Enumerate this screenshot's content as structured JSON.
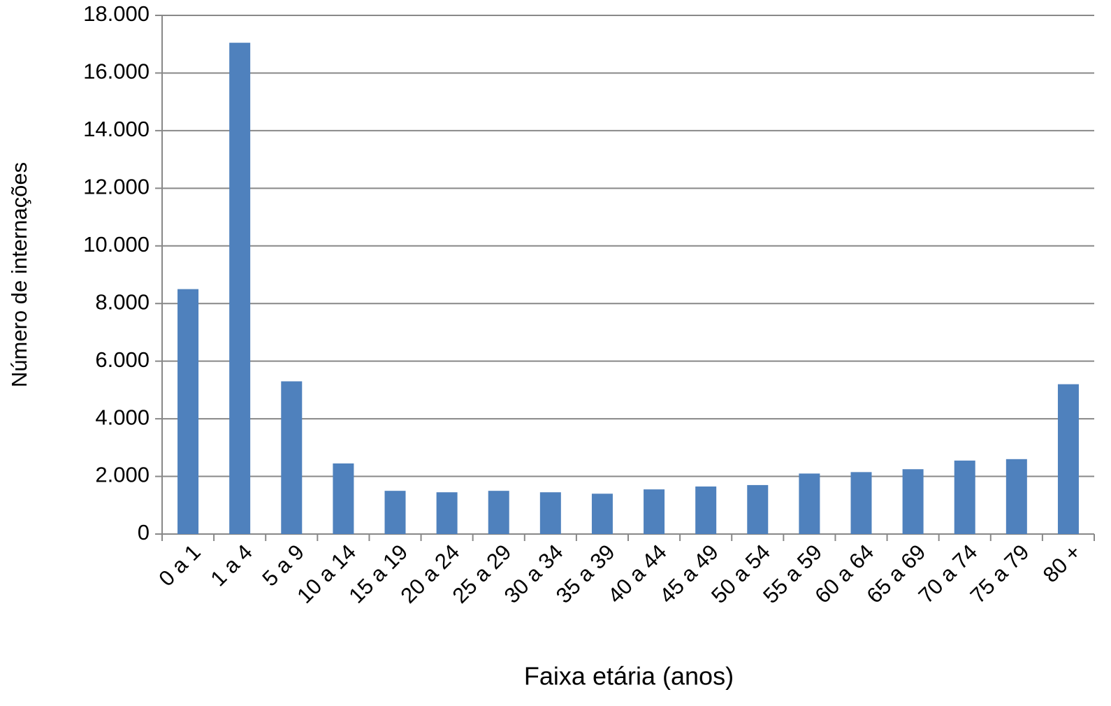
{
  "chart_data": {
    "type": "bar",
    "x_label": "Faixa etária (anos)",
    "y_label": "Número de internações",
    "categories": [
      "0 a 1",
      "1 a 4",
      "5 a 9",
      "10 a 14",
      "15 a 19",
      "20 a 24",
      "25 a 29",
      "30 a 34",
      "35 a 39",
      "40 a 44",
      "45 a 49",
      "50 a 54",
      "55 a 59",
      "60 a 64",
      "65 a 69",
      "70 a 74",
      "75 a 79",
      "80 +"
    ],
    "values": [
      8500,
      17050,
      5300,
      2450,
      1500,
      1450,
      1500,
      1450,
      1400,
      1550,
      1650,
      1700,
      2100,
      2150,
      2250,
      2550,
      2600,
      5200
    ],
    "color": "#4f81bd",
    "ylim": [
      0,
      18000
    ],
    "yticks": [
      0,
      {
        "value": 2000,
        "label": "2.000"
      },
      {
        "value": 4000,
        "label": "4.000"
      },
      {
        "value": 6000,
        "label": "6.000"
      },
      {
        "value": 8000,
        "label": "8.000"
      },
      {
        "value": 10000,
        "label": "10.000"
      },
      {
        "value": 12000,
        "label": "12.000"
      },
      {
        "value": 14000,
        "label": "14.000"
      },
      {
        "value": 16000,
        "label": "16.000"
      },
      {
        "value": 18000,
        "label": "18.000"
      }
    ],
    "grid": true
  }
}
